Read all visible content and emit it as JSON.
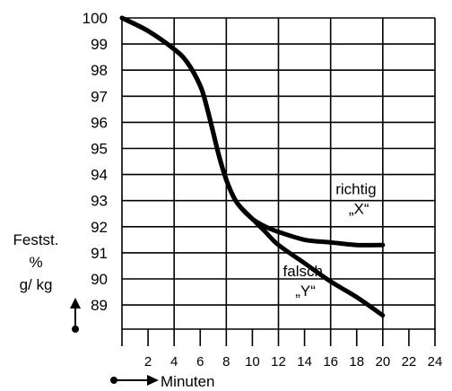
{
  "chart_data": {
    "type": "line",
    "title": "",
    "ylabel_lines": [
      "Festst.",
      "%",
      "g/ kg"
    ],
    "xlabel": "Minuten",
    "x_ticks": [
      2,
      4,
      6,
      8,
      10,
      12,
      14,
      16,
      18,
      20,
      22,
      24
    ],
    "y_ticks": [
      100,
      99,
      98,
      97,
      96,
      95,
      94,
      93,
      92,
      91,
      90,
      89
    ],
    "xlim": [
      0,
      24
    ],
    "ylim": [
      88.5,
      100
    ],
    "grid": true,
    "series": [
      {
        "label_lines": [
          "richtig",
          "„X“"
        ],
        "color": "#000000",
        "points": [
          [
            0,
            100
          ],
          [
            2,
            99.5
          ],
          [
            4,
            98.8
          ],
          [
            5,
            98.3
          ],
          [
            6,
            97.4
          ],
          [
            6.5,
            96.6
          ],
          [
            7,
            95.6
          ],
          [
            7.5,
            94.6
          ],
          [
            8,
            93.8
          ],
          [
            8.5,
            93.2
          ],
          [
            9,
            92.8
          ],
          [
            10,
            92.3
          ],
          [
            11,
            92.0
          ],
          [
            12,
            91.8
          ],
          [
            14,
            91.5
          ],
          [
            16,
            91.4
          ],
          [
            18,
            91.3
          ],
          [
            20,
            91.3
          ]
        ]
      },
      {
        "label_lines": [
          "falsch",
          "„Y“"
        ],
        "color": "#000000",
        "points": [
          [
            0,
            100
          ],
          [
            2,
            99.5
          ],
          [
            4,
            98.8
          ],
          [
            5,
            98.3
          ],
          [
            6,
            97.4
          ],
          [
            6.5,
            96.6
          ],
          [
            7,
            95.6
          ],
          [
            7.5,
            94.6
          ],
          [
            8,
            93.8
          ],
          [
            8.5,
            93.2
          ],
          [
            9,
            92.8
          ],
          [
            10,
            92.3
          ],
          [
            11,
            91.8
          ],
          [
            12,
            91.3
          ],
          [
            14,
            90.6
          ],
          [
            16,
            89.9
          ],
          [
            18,
            89.3
          ],
          [
            20,
            88.6
          ]
        ]
      }
    ]
  }
}
